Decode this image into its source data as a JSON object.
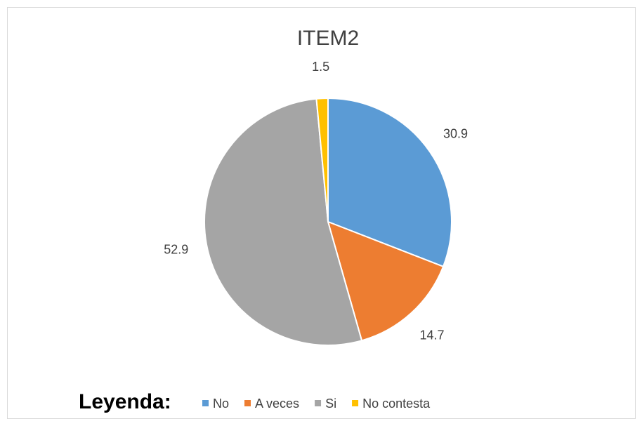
{
  "chart_data": {
    "type": "pie",
    "title": "ITEM2",
    "categories": [
      "No",
      "A veces",
      "Si",
      "No contesta"
    ],
    "values": [
      30.9,
      14.7,
      52.9,
      1.5
    ],
    "colors": [
      "#5b9bd5",
      "#ed7d31",
      "#a5a5a5",
      "#ffc000"
    ],
    "legend_title": "Leyenda:",
    "legend": "bottom"
  }
}
